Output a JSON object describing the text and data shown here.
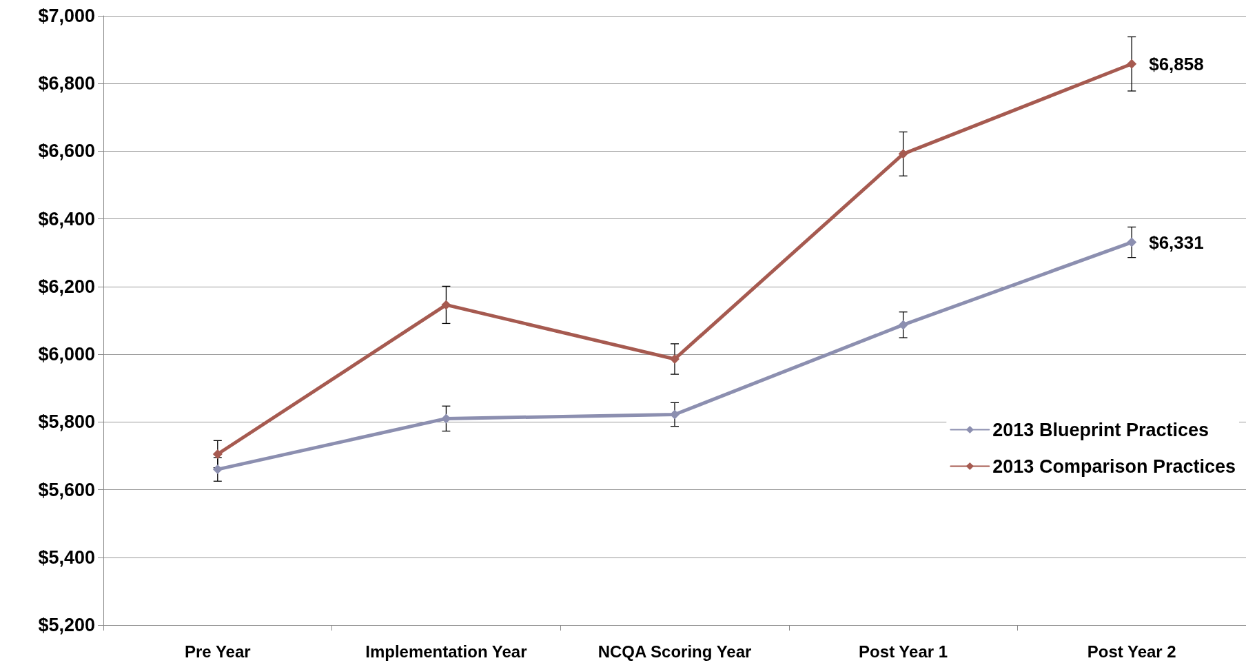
{
  "chart_data": {
    "type": "line",
    "categories": [
      "Pre Year",
      "Implementation Year",
      "NCQA Scoring Year",
      "Post Year 1",
      "Post Year 2"
    ],
    "series": [
      {
        "name": "2013 Blueprint Practices",
        "color": "#8c8fb0",
        "values": [
          5660,
          5810,
          5822,
          6087,
          6331
        ],
        "errors": [
          35,
          37,
          35,
          38,
          45
        ],
        "value_labels": [
          null,
          null,
          null,
          null,
          "$6,331"
        ]
      },
      {
        "name": "2013 Comparison Practices",
        "color": "#a65a50",
        "values": [
          5705,
          6146,
          5986,
          6592,
          6858
        ],
        "errors": [
          40,
          55,
          45,
          65,
          80
        ],
        "value_labels": [
          null,
          null,
          null,
          null,
          "$6,858"
        ]
      }
    ],
    "ylim": [
      5200,
      7000
    ],
    "yticks": [
      {
        "value": 5200,
        "label": "$5,200"
      },
      {
        "value": 5400,
        "label": "$5,400"
      },
      {
        "value": 5600,
        "label": "$5,600"
      },
      {
        "value": 5800,
        "label": "$5,800"
      },
      {
        "value": 6000,
        "label": "$6,000"
      },
      {
        "value": 6200,
        "label": "$6,200"
      },
      {
        "value": 6400,
        "label": "$6,400"
      },
      {
        "value": 6600,
        "label": "$6,600"
      },
      {
        "value": 6800,
        "label": "$6,800"
      },
      {
        "value": 7000,
        "label": "$7,000"
      }
    ],
    "grid": "y",
    "legend": "right",
    "marker": "diamond",
    "line_style": "solid"
  }
}
